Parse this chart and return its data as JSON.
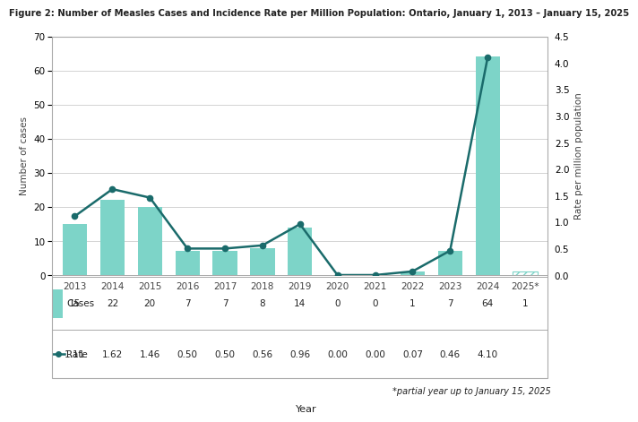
{
  "title": "Figure 2: Number of Measles Cases and Incidence Rate per Million Population: Ontario, January 1, 2013 – January 15, 2025",
  "years": [
    "2013",
    "2014",
    "2015",
    "2016",
    "2017",
    "2018",
    "2019",
    "2020",
    "2021",
    "2022",
    "2023",
    "2024",
    "2025*"
  ],
  "cases": [
    15,
    22,
    20,
    7,
    7,
    8,
    14,
    0,
    0,
    1,
    7,
    64,
    1
  ],
  "rates": [
    1.11,
    1.62,
    1.46,
    0.5,
    0.5,
    0.56,
    0.96,
    0.0,
    0.0,
    0.07,
    0.46,
    4.1,
    null
  ],
  "bar_color": "#7DD4C8",
  "line_color": "#1A6B6B",
  "left_ylabel": "Number of cases",
  "right_ylabel": "Rate per million population",
  "xlabel": "Year",
  "left_ylim": [
    0,
    70
  ],
  "right_ylim": [
    0,
    4.5
  ],
  "left_yticks": [
    0,
    10,
    20,
    30,
    40,
    50,
    60,
    70
  ],
  "right_yticks": [
    0.0,
    0.5,
    1.0,
    1.5,
    2.0,
    2.5,
    3.0,
    3.5,
    4.0,
    4.5
  ],
  "legend_cases_label": "Cases",
  "legend_rate_label": "Rate",
  "annotation": "*partial year up to January 15, 2025",
  "bg_color": "#FFFFFF",
  "grid_color": "#CCCCCC",
  "box_color": "#CCCCCC",
  "table_cases": [
    "15",
    "22",
    "20",
    "7",
    "7",
    "8",
    "14",
    "0",
    "0",
    "1",
    "7",
    "64",
    "1"
  ],
  "table_rates": [
    "1.11",
    "1.62",
    "1.46",
    "0.50",
    "0.50",
    "0.56",
    "0.96",
    "0.00",
    "0.00",
    "0.07",
    "0.46",
    "4.10",
    ""
  ]
}
